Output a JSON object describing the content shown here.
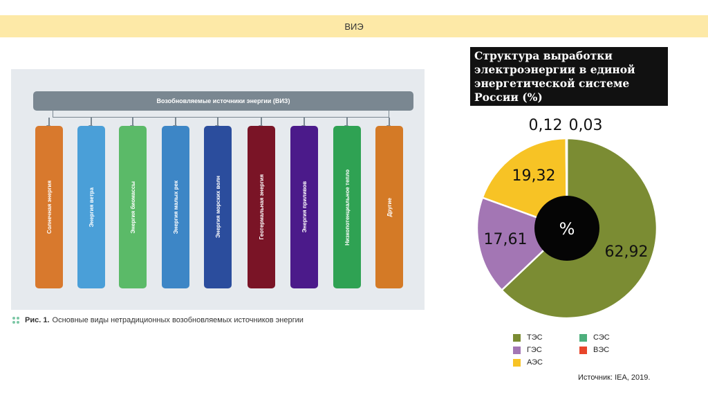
{
  "header": {
    "title": "ВИЭ"
  },
  "diagram": {
    "header_label": "Возобновляемые источники энергии (ВИЗ)",
    "sources": [
      {
        "label": "Солнечная энергия",
        "color": "#d8792d"
      },
      {
        "label": "Энергия ветра",
        "color": "#4a9fd8"
      },
      {
        "label": "Энергия биомассы",
        "color": "#5bba68"
      },
      {
        "label": "Энергия малых рек",
        "color": "#3d86c6"
      },
      {
        "label": "Энергия морских волн",
        "color": "#2b4d9d"
      },
      {
        "label": "Геотермальная энергия",
        "color": "#7a1426"
      },
      {
        "label": "Энергия приливов",
        "color": "#4b1a8a"
      },
      {
        "label": "Низкопотенциальное тепло",
        "color": "#2fa253"
      },
      {
        "label": "Другие",
        "color": "#d47a26"
      }
    ],
    "caption_lead": "Рис. 1.",
    "caption_text": "Основные виды нетрадиционных возобновляемых источников энергии"
  },
  "chart_data": {
    "type": "pie",
    "title": "Структура выработки\nэлектроэнергии в единой\nэнергетической системе\nРоссии (%)",
    "center_label": "%",
    "slices": [
      {
        "label": "ТЭС",
        "value": 62.92,
        "display": "62,92",
        "color": "#7b8c33"
      },
      {
        "label": "ГЭС",
        "value": 17.61,
        "display": "17,61",
        "color": "#a376b4"
      },
      {
        "label": "АЭС",
        "value": 19.32,
        "display": "19,32",
        "color": "#f7c325"
      },
      {
        "label": "СЭС",
        "value": 0.12,
        "display": "0,12",
        "color": "#4daf7c"
      },
      {
        "label": "ВЭС",
        "value": 0.03,
        "display": "0,03",
        "color": "#e8452a"
      }
    ],
    "legend": [
      "ТЭС",
      "СЭС",
      "ГЭС",
      "ВЭС",
      "АЭС"
    ]
  },
  "source_note": "Источник: IEA, 2019."
}
